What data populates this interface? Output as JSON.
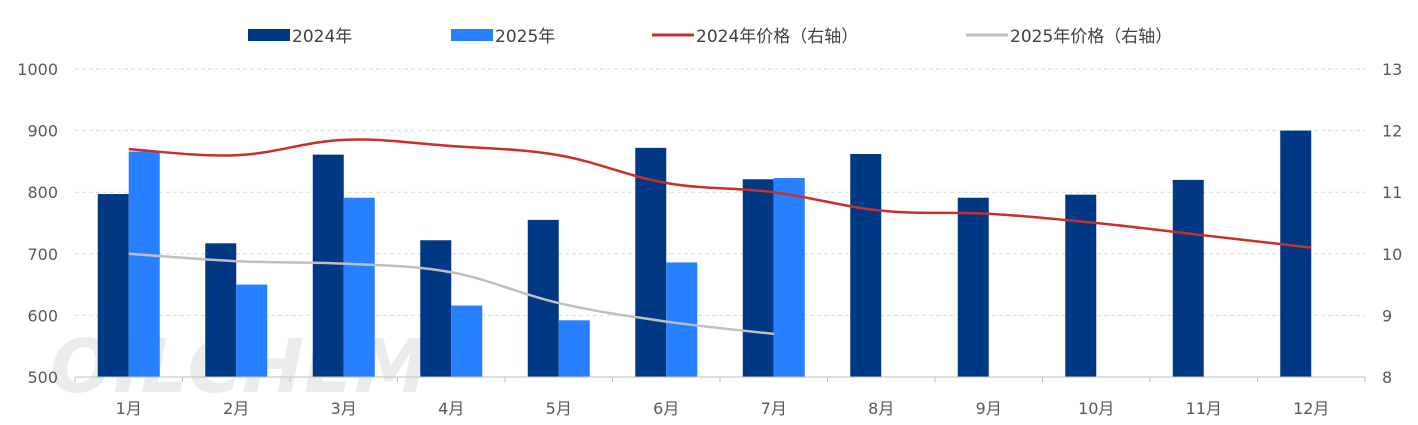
{
  "chart_data": {
    "type": "bar",
    "categories": [
      "1月",
      "2月",
      "3月",
      "4月",
      "5月",
      "6月",
      "7月",
      "8月",
      "9月",
      "10月",
      "11月",
      "12月"
    ],
    "series": [
      {
        "name": "2024年",
        "kind": "bar",
        "axis": "left",
        "color": "#003884",
        "values": [
          797,
          717,
          861,
          722,
          755,
          872,
          821,
          862,
          791,
          796,
          820,
          900
        ]
      },
      {
        "name": "2025年",
        "kind": "bar",
        "axis": "left",
        "color": "#2680FF",
        "values": [
          866,
          650,
          791,
          616,
          592,
          686,
          823,
          null,
          null,
          null,
          null,
          null
        ]
      },
      {
        "name": "2024年价格（右轴）",
        "kind": "line",
        "axis": "right",
        "color": "#C8302B",
        "values": [
          11.7,
          11.6,
          11.85,
          11.75,
          11.6,
          11.15,
          11.0,
          10.7,
          10.65,
          10.5,
          10.3,
          10.1
        ]
      },
      {
        "name": "2025年价格（右轴）",
        "kind": "line",
        "axis": "right",
        "color": "#BFBFBF",
        "values": [
          10.0,
          9.88,
          9.84,
          9.7,
          9.2,
          8.9,
          8.7,
          null,
          null,
          null,
          null,
          null
        ]
      }
    ],
    "y_left": {
      "min": 500,
      "max": 1000,
      "ticks": [
        500,
        600,
        700,
        800,
        900,
        1000
      ]
    },
    "y_right": {
      "min": 8,
      "max": 13,
      "ticks": [
        8,
        9,
        10,
        11,
        12,
        13
      ]
    },
    "legend_position": "top",
    "grid": "horizontal dashed"
  },
  "watermark": "OILCHEM"
}
